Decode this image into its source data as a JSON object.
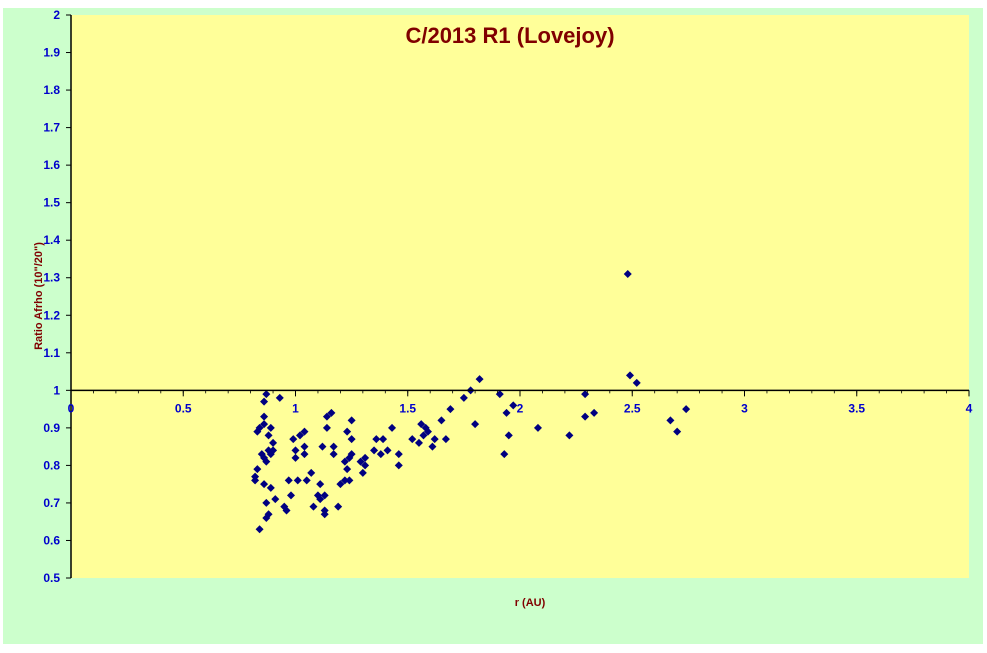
{
  "colors": {
    "outer_background": "#ccffcc",
    "plot_background": "#ffff99",
    "title_color": "#800000",
    "axis_title_color": "#800000",
    "tick_label_color": "#0000cc",
    "marker_color": "#000080",
    "axis_line_color": "#000000"
  },
  "chart_data": {
    "type": "scatter",
    "title": "C/2013 R1 (Lovejoy)",
    "xlabel": "r (AU)",
    "ylabel": "Ratio Afrho (10\"/20\")",
    "xlim": [
      0,
      4
    ],
    "ylim": [
      0.5,
      2
    ],
    "x_axis_crosses_y_at": 1,
    "x_ticks": [
      {
        "value": 0,
        "label": "0"
      },
      {
        "value": 0.5,
        "label": "0.5"
      },
      {
        "value": 1,
        "label": "1"
      },
      {
        "value": 1.5,
        "label": "1.5"
      },
      {
        "value": 2,
        "label": "2"
      },
      {
        "value": 2.5,
        "label": "2.5"
      },
      {
        "value": 3,
        "label": "3"
      },
      {
        "value": 3.5,
        "label": "3.5"
      },
      {
        "value": 4,
        "label": "4"
      }
    ],
    "y_ticks": [
      {
        "value": 0.5,
        "label": "0.5"
      },
      {
        "value": 0.6,
        "label": "0.6"
      },
      {
        "value": 0.7,
        "label": "0.7"
      },
      {
        "value": 0.8,
        "label": "0.8"
      },
      {
        "value": 0.9,
        "label": "0.9"
      },
      {
        "value": 1.0,
        "label": "1"
      },
      {
        "value": 1.1,
        "label": "1.1"
      },
      {
        "value": 1.2,
        "label": "1.2"
      },
      {
        "value": 1.3,
        "label": "1.3"
      },
      {
        "value": 1.4,
        "label": "1.4"
      },
      {
        "value": 1.5,
        "label": "1.5"
      },
      {
        "value": 1.6,
        "label": "1.6"
      },
      {
        "value": 1.7,
        "label": "1.7"
      },
      {
        "value": 1.8,
        "label": "1.8"
      },
      {
        "value": 1.9,
        "label": "1.9"
      },
      {
        "value": 2.0,
        "label": "2"
      }
    ],
    "grid": false,
    "legend": "none",
    "marker": "diamond",
    "series": [
      {
        "points": [
          [
            0.82,
            0.77
          ],
          [
            0.82,
            0.76
          ],
          [
            0.83,
            0.79
          ],
          [
            0.83,
            0.89
          ],
          [
            0.84,
            0.9
          ],
          [
            0.84,
            0.63
          ],
          [
            0.85,
            0.83
          ],
          [
            0.86,
            0.82
          ],
          [
            0.86,
            0.75
          ],
          [
            0.86,
            0.91
          ],
          [
            0.86,
            0.93
          ],
          [
            0.86,
            0.97
          ],
          [
            0.87,
            0.99
          ],
          [
            0.87,
            0.66
          ],
          [
            0.87,
            0.7
          ],
          [
            0.87,
            0.81
          ],
          [
            0.88,
            0.84
          ],
          [
            0.88,
            0.88
          ],
          [
            0.88,
            0.67
          ],
          [
            0.89,
            0.9
          ],
          [
            0.89,
            0.83
          ],
          [
            0.89,
            0.74
          ],
          [
            0.9,
            0.86
          ],
          [
            0.9,
            0.84
          ],
          [
            0.91,
            0.71
          ],
          [
            0.93,
            0.98
          ],
          [
            0.95,
            0.69
          ],
          [
            0.96,
            0.68
          ],
          [
            0.97,
            0.76
          ],
          [
            0.98,
            0.72
          ],
          [
            0.99,
            0.87
          ],
          [
            1.0,
            0.84
          ],
          [
            1.0,
            0.82
          ],
          [
            1.01,
            0.76
          ],
          [
            1.02,
            0.88
          ],
          [
            1.04,
            0.89
          ],
          [
            1.04,
            0.83
          ],
          [
            1.04,
            0.85
          ],
          [
            1.05,
            0.76
          ],
          [
            1.07,
            0.78
          ],
          [
            1.08,
            0.69
          ],
          [
            1.1,
            0.72
          ],
          [
            1.11,
            0.71
          ],
          [
            1.11,
            0.75
          ],
          [
            1.12,
            0.85
          ],
          [
            1.13,
            0.68
          ],
          [
            1.13,
            0.72
          ],
          [
            1.13,
            0.67
          ],
          [
            1.14,
            0.9
          ],
          [
            1.14,
            0.93
          ],
          [
            1.16,
            0.94
          ],
          [
            1.17,
            0.85
          ],
          [
            1.17,
            0.83
          ],
          [
            1.19,
            0.69
          ],
          [
            1.2,
            0.75
          ],
          [
            1.22,
            0.76
          ],
          [
            1.22,
            0.81
          ],
          [
            1.23,
            0.89
          ],
          [
            1.23,
            0.79
          ],
          [
            1.24,
            0.82
          ],
          [
            1.24,
            0.76
          ],
          [
            1.25,
            0.83
          ],
          [
            1.25,
            0.87
          ],
          [
            1.25,
            0.92
          ],
          [
            1.29,
            0.81
          ],
          [
            1.3,
            0.78
          ],
          [
            1.31,
            0.8
          ],
          [
            1.31,
            0.82
          ],
          [
            1.35,
            0.84
          ],
          [
            1.36,
            0.87
          ],
          [
            1.38,
            0.83
          ],
          [
            1.39,
            0.87
          ],
          [
            1.41,
            0.84
          ],
          [
            1.43,
            0.9
          ],
          [
            1.46,
            0.8
          ],
          [
            1.46,
            0.83
          ],
          [
            1.52,
            0.87
          ],
          [
            1.55,
            0.86
          ],
          [
            1.56,
            0.91
          ],
          [
            1.57,
            0.88
          ],
          [
            1.58,
            0.9
          ],
          [
            1.59,
            0.89
          ],
          [
            1.61,
            0.85
          ],
          [
            1.62,
            0.87
          ],
          [
            1.65,
            0.92
          ],
          [
            1.67,
            0.87
          ],
          [
            1.69,
            0.95
          ],
          [
            1.75,
            0.98
          ],
          [
            1.78,
            1.0
          ],
          [
            1.8,
            0.91
          ],
          [
            1.82,
            1.03
          ],
          [
            1.91,
            0.99
          ],
          [
            1.93,
            0.83
          ],
          [
            1.94,
            0.94
          ],
          [
            1.95,
            0.88
          ],
          [
            1.97,
            0.96
          ],
          [
            2.08,
            0.9
          ],
          [
            2.22,
            0.88
          ],
          [
            2.29,
            0.93
          ],
          [
            2.29,
            0.99
          ],
          [
            2.33,
            0.94
          ],
          [
            2.48,
            1.31
          ],
          [
            2.49,
            1.04
          ],
          [
            2.52,
            1.02
          ],
          [
            2.67,
            0.92
          ],
          [
            2.7,
            0.89
          ],
          [
            2.74,
            0.95
          ]
        ]
      }
    ]
  }
}
